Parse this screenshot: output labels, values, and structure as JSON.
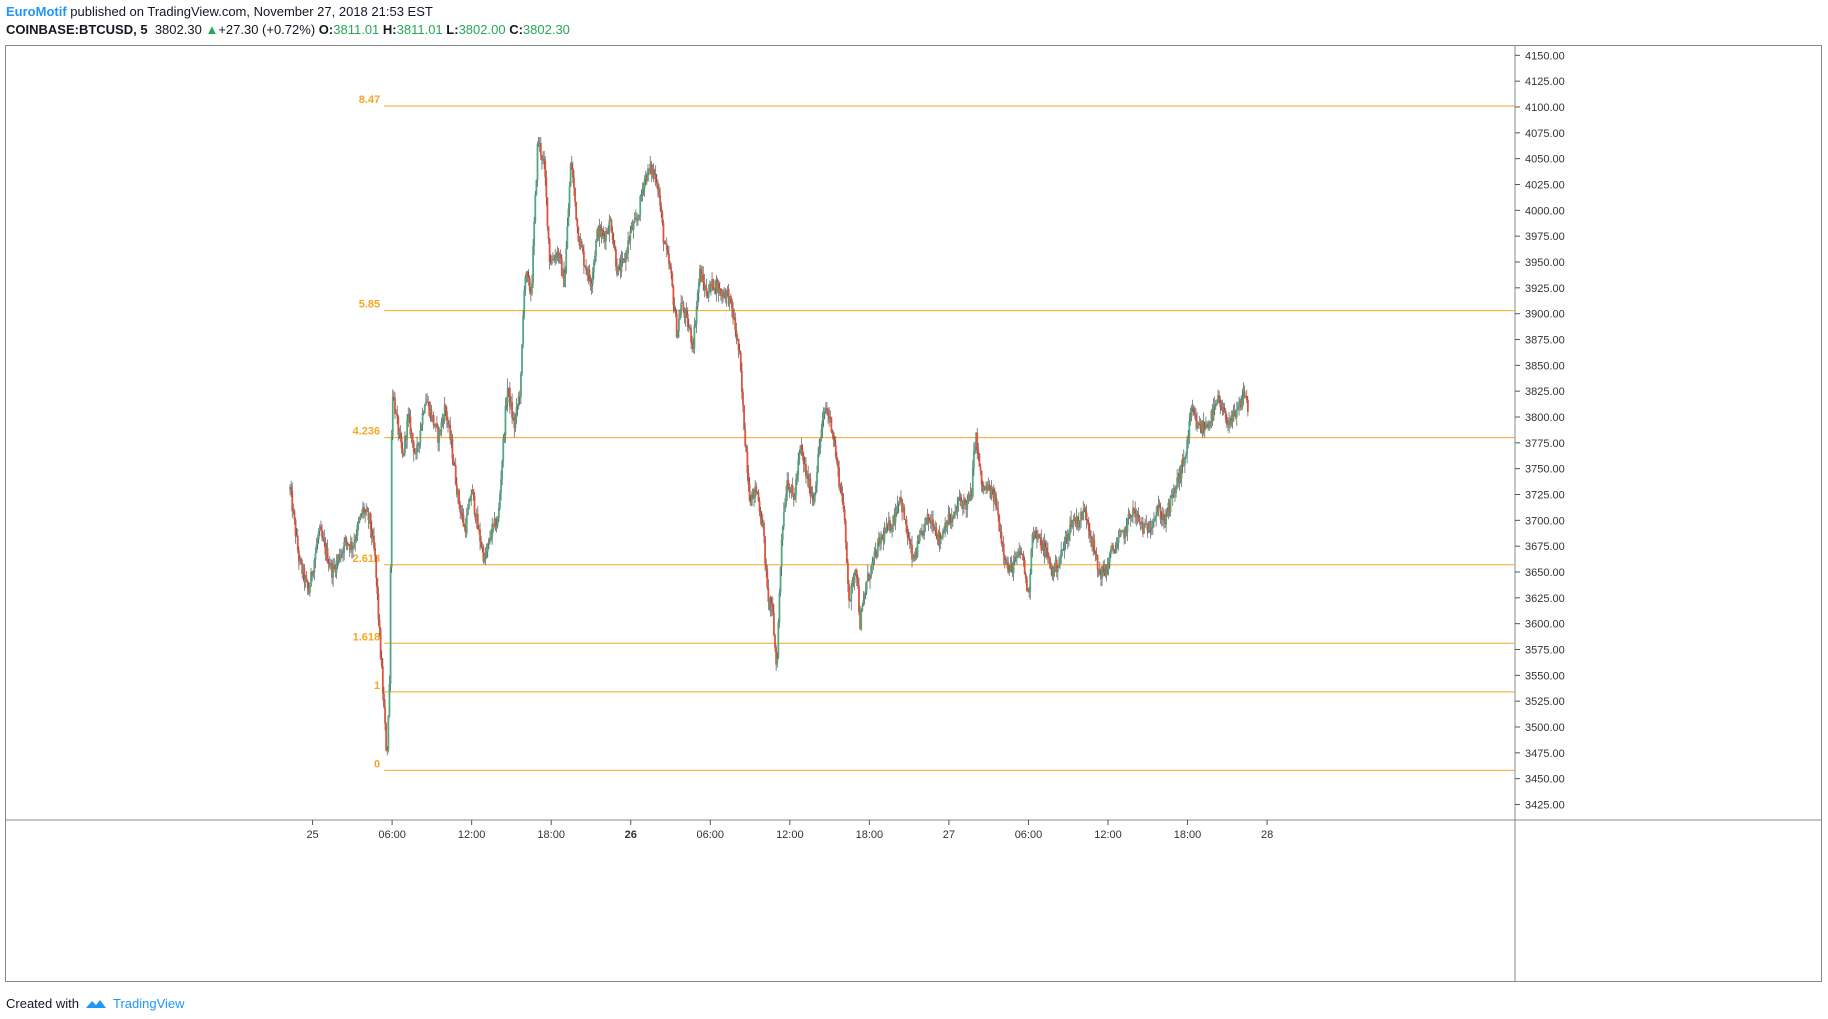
{
  "header": {
    "publisher": "EuroMotif",
    "published_text": "published on TradingView.com, November 27, 2018 21:53 EST",
    "symbol": "COINBASE:BTCUSD, 5",
    "last_price": "3802.30",
    "change": "+27.30 (+0.72%)",
    "ohlc": {
      "o_label": "O:",
      "o": "3811.01",
      "h_label": "H:",
      "h": "3811.01",
      "l_label": "L:",
      "l": "3802.00",
      "c_label": "C:",
      "c": "3802.30"
    }
  },
  "footer": {
    "created_with": "Created with",
    "brand": "TradingView"
  },
  "colors": {
    "up": "#53a97f",
    "down": "#e0543d",
    "fib": "#f5a623",
    "axis": "#555555",
    "border": "#888888"
  },
  "chart_data": {
    "type": "candlestick",
    "title": "COINBASE:BTCUSD, 5",
    "ylim": [
      3410,
      4160
    ],
    "y_ticks": [
      3425,
      3450,
      3475,
      3500,
      3525,
      3550,
      3575,
      3600,
      3625,
      3650,
      3675,
      3700,
      3725,
      3750,
      3775,
      3800,
      3825,
      3850,
      3875,
      3900,
      3925,
      3950,
      3975,
      4000,
      4025,
      4050,
      4075,
      4100,
      4125,
      4150
    ],
    "y_tick_labels": [
      "3425.00",
      "3450.00",
      "3475.00",
      "3500.00",
      "3525.00",
      "3550.00",
      "3575.00",
      "3600.00",
      "3625.00",
      "3650.00",
      "3675.00",
      "3700.00",
      "3725.00",
      "3750.00",
      "3775.00",
      "3800.00",
      "3825.00",
      "3850.00",
      "3875.00",
      "3900.00",
      "3925.00",
      "3950.00",
      "3975.00",
      "4000.00",
      "4025.00",
      "4050.00",
      "4075.00",
      "4100.00",
      "4125.00",
      "4150.00"
    ],
    "x_range_hours": [
      -23.2,
      90.7
    ],
    "x_ticks": [
      {
        "label": "25",
        "h": 0,
        "bold": false
      },
      {
        "label": "06:00",
        "h": 6,
        "bold": false
      },
      {
        "label": "12:00",
        "h": 12,
        "bold": false
      },
      {
        "label": "18:00",
        "h": 18,
        "bold": false
      },
      {
        "label": "26",
        "h": 24,
        "bold": true
      },
      {
        "label": "06:00",
        "h": 30,
        "bold": false
      },
      {
        "label": "12:00",
        "h": 36,
        "bold": false
      },
      {
        "label": "18:00",
        "h": 42,
        "bold": false
      },
      {
        "label": "27",
        "h": 48,
        "bold": false
      },
      {
        "label": "06:00",
        "h": 54,
        "bold": false
      },
      {
        "label": "12:00",
        "h": 60,
        "bold": false
      },
      {
        "label": "18:00",
        "h": 66,
        "bold": false
      },
      {
        "label": "28",
        "h": 72,
        "bold": false
      }
    ],
    "fib_levels": [
      {
        "label": "8.47",
        "price": 4101
      },
      {
        "label": "5.85",
        "price": 3903
      },
      {
        "label": "4.236",
        "price": 3780
      },
      {
        "label": "2.618",
        "price": 3657
      },
      {
        "label": "1.618",
        "price": 3581
      },
      {
        "label": "1",
        "price": 3534
      },
      {
        "label": "0",
        "price": 3458
      }
    ],
    "fib_start_hour": 5.4,
    "price_path": [
      [
        -1.7,
        3730
      ],
      [
        -1.0,
        3660
      ],
      [
        -0.3,
        3630
      ],
      [
        0.5,
        3690
      ],
      [
        1.5,
        3650
      ],
      [
        2.5,
        3680
      ],
      [
        3.0,
        3675
      ],
      [
        3.8,
        3710
      ],
      [
        4.3,
        3700
      ],
      [
        4.7,
        3665
      ],
      [
        5.0,
        3600
      ],
      [
        5.3,
        3535
      ],
      [
        5.6,
        3470
      ],
      [
        5.8,
        3540
      ],
      [
        6.0,
        3830
      ],
      [
        6.3,
        3800
      ],
      [
        6.8,
        3760
      ],
      [
        7.2,
        3800
      ],
      [
        7.8,
        3760
      ],
      [
        8.5,
        3820
      ],
      [
        9.0,
        3800
      ],
      [
        9.5,
        3780
      ],
      [
        10.0,
        3810
      ],
      [
        10.5,
        3770
      ],
      [
        11.0,
        3720
      ],
      [
        11.5,
        3690
      ],
      [
        12.0,
        3730
      ],
      [
        12.5,
        3690
      ],
      [
        13.0,
        3660
      ],
      [
        13.5,
        3690
      ],
      [
        14.0,
        3700
      ],
      [
        14.3,
        3760
      ],
      [
        14.7,
        3830
      ],
      [
        15.2,
        3790
      ],
      [
        15.7,
        3830
      ],
      [
        16.0,
        3940
      ],
      [
        16.5,
        3920
      ],
      [
        17.0,
        4070
      ],
      [
        17.5,
        4040
      ],
      [
        17.9,
        3950
      ],
      [
        18.5,
        3960
      ],
      [
        19.0,
        3930
      ],
      [
        19.5,
        4050
      ],
      [
        20.0,
        3980
      ],
      [
        20.5,
        3950
      ],
      [
        21.0,
        3930
      ],
      [
        21.5,
        3980
      ],
      [
        22.0,
        3975
      ],
      [
        22.5,
        3990
      ],
      [
        23.0,
        3940
      ],
      [
        23.5,
        3950
      ],
      [
        24.0,
        3980
      ],
      [
        24.5,
        3990
      ],
      [
        25.0,
        4030
      ],
      [
        25.5,
        4040
      ],
      [
        26.0,
        4030
      ],
      [
        26.5,
        3970
      ],
      [
        27.0,
        3940
      ],
      [
        27.5,
        3880
      ],
      [
        27.8,
        3910
      ],
      [
        28.3,
        3890
      ],
      [
        28.7,
        3870
      ],
      [
        29.2,
        3940
      ],
      [
        29.7,
        3920
      ],
      [
        30.3,
        3930
      ],
      [
        30.8,
        3920
      ],
      [
        31.3,
        3920
      ],
      [
        31.7,
        3900
      ],
      [
        32.2,
        3860
      ],
      [
        32.5,
        3800
      ],
      [
        33.0,
        3720
      ],
      [
        33.5,
        3730
      ],
      [
        34.0,
        3690
      ],
      [
        34.3,
        3630
      ],
      [
        34.7,
        3610
      ],
      [
        35.0,
        3555
      ],
      [
        35.4,
        3690
      ],
      [
        35.8,
        3740
      ],
      [
        36.3,
        3720
      ],
      [
        36.8,
        3770
      ],
      [
        37.3,
        3740
      ],
      [
        37.8,
        3720
      ],
      [
        38.3,
        3780
      ],
      [
        38.7,
        3810
      ],
      [
        39.2,
        3790
      ],
      [
        39.7,
        3740
      ],
      [
        40.0,
        3720
      ],
      [
        40.5,
        3620
      ],
      [
        41.0,
        3660
      ],
      [
        41.3,
        3600
      ],
      [
        41.8,
        3640
      ],
      [
        42.3,
        3660
      ],
      [
        42.8,
        3680
      ],
      [
        43.3,
        3690
      ],
      [
        43.8,
        3700
      ],
      [
        44.3,
        3725
      ],
      [
        44.8,
        3690
      ],
      [
        45.3,
        3660
      ],
      [
        45.8,
        3680
      ],
      [
        46.3,
        3700
      ],
      [
        46.8,
        3700
      ],
      [
        47.3,
        3680
      ],
      [
        47.8,
        3700
      ],
      [
        48.3,
        3700
      ],
      [
        48.8,
        3720
      ],
      [
        49.3,
        3715
      ],
      [
        49.7,
        3725
      ],
      [
        50.0,
        3785
      ],
      [
        50.5,
        3730
      ],
      [
        51.0,
        3730
      ],
      [
        51.5,
        3720
      ],
      [
        52.0,
        3680
      ],
      [
        52.5,
        3650
      ],
      [
        53.0,
        3660
      ],
      [
        53.5,
        3670
      ],
      [
        54.0,
        3625
      ],
      [
        54.3,
        3690
      ],
      [
        54.8,
        3680
      ],
      [
        55.3,
        3670
      ],
      [
        55.8,
        3650
      ],
      [
        56.3,
        3660
      ],
      [
        56.8,
        3680
      ],
      [
        57.3,
        3700
      ],
      [
        57.8,
        3700
      ],
      [
        58.3,
        3710
      ],
      [
        58.8,
        3680
      ],
      [
        59.3,
        3650
      ],
      [
        59.8,
        3650
      ],
      [
        60.3,
        3670
      ],
      [
        60.8,
        3680
      ],
      [
        61.3,
        3690
      ],
      [
        61.8,
        3710
      ],
      [
        62.3,
        3700
      ],
      [
        62.8,
        3690
      ],
      [
        63.3,
        3700
      ],
      [
        63.8,
        3710
      ],
      [
        64.3,
        3700
      ],
      [
        64.8,
        3720
      ],
      [
        65.3,
        3740
      ],
      [
        65.8,
        3760
      ],
      [
        66.3,
        3805
      ],
      [
        66.8,
        3790
      ],
      [
        67.3,
        3790
      ],
      [
        67.8,
        3800
      ],
      [
        68.3,
        3815
      ],
      [
        68.8,
        3800
      ],
      [
        69.3,
        3795
      ],
      [
        69.8,
        3805
      ],
      [
        70.3,
        3825
      ],
      [
        70.6,
        3805
      ]
    ]
  }
}
